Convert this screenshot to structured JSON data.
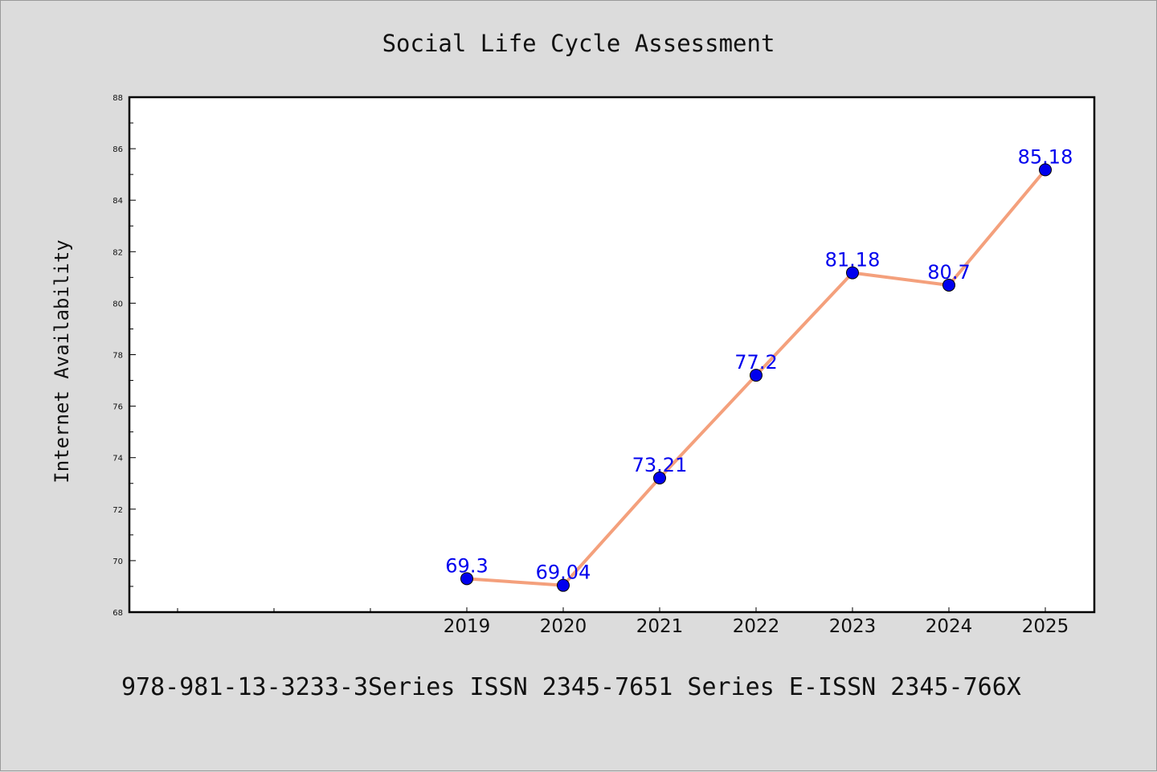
{
  "chart_data": {
    "type": "line",
    "title": "Social Life Cycle Assessment",
    "xlabel": "",
    "ylabel": "Internet Availability",
    "categories": [
      "2019",
      "2020",
      "2021",
      "2022",
      "2023",
      "2024",
      "2025"
    ],
    "series": [
      {
        "values": [
          69.3,
          69.04,
          73.21,
          77.2,
          81.18,
          80.7,
          85.18
        ]
      }
    ],
    "data_labels": [
      "69.3",
      "69.04",
      "73.21",
      "77.2",
      "81.18",
      "80.7",
      "85.18"
    ],
    "ylim": [
      68,
      88
    ],
    "yticks": [
      "68",
      "70",
      "72",
      "74",
      "76",
      "78",
      "80",
      "82",
      "84",
      "86",
      "88"
    ],
    "grid": false,
    "legend": "none",
    "colors": {
      "line": "#f4a07c",
      "marker": "#0000ee",
      "label": "#0000ee",
      "background": "#dcdcdc",
      "plot_area": "#ffffff"
    }
  },
  "footer": "978-981-13-3233-3Series ISSN 2345-7651 Series E-ISSN 2345-766X"
}
